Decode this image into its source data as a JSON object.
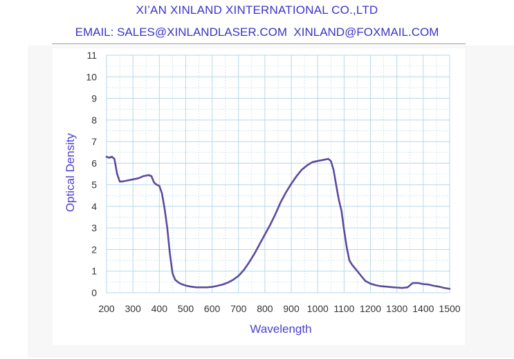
{
  "header": {
    "company": "XI’AN XINLAND XINTERNATIONAL CO.,LTD",
    "email": "EMAIL: SALES@XINLANDLASER.COM  XINLAND@FOXMAIL.COM"
  },
  "colors": {
    "header_text": "#3a33c8",
    "axis_title": "#4a3fd0",
    "line": "#5b4a9c",
    "grid": "#b5d7ea"
  },
  "chart_data": {
    "type": "line",
    "xlabel": "Wavelength",
    "ylabel": "Optical Density",
    "xlim": [
      200,
      1500
    ],
    "ylim": [
      0,
      11
    ],
    "x_ticks": [
      200,
      300,
      400,
      500,
      600,
      700,
      800,
      900,
      1000,
      1100,
      1200,
      1300,
      1400,
      1500
    ],
    "y_ticks": [
      0,
      1,
      2,
      3,
      4,
      5,
      6,
      7,
      8,
      9,
      10,
      11
    ],
    "grid": true,
    "legend": "none",
    "series": [
      {
        "x": [
          200,
          210,
          220,
          230,
          240,
          250,
          260,
          280,
          300,
          320,
          340,
          360,
          370,
          380,
          390,
          400,
          410,
          420,
          430,
          440,
          450,
          460,
          470,
          480,
          500,
          520,
          540,
          560,
          580,
          600,
          620,
          640,
          660,
          680,
          700,
          720,
          740,
          760,
          780,
          800,
          820,
          840,
          860,
          880,
          900,
          920,
          940,
          960,
          980,
          1000,
          1020,
          1040,
          1050,
          1060,
          1070,
          1080,
          1090,
          1100,
          1110,
          1120,
          1130,
          1140,
          1150,
          1160,
          1180,
          1200,
          1220,
          1240,
          1260,
          1280,
          1300,
          1320,
          1340,
          1350,
          1360,
          1380,
          1400,
          1420,
          1440,
          1460,
          1480,
          1500
        ],
        "y": [
          6.3,
          6.25,
          6.3,
          6.2,
          5.5,
          5.15,
          5.15,
          5.2,
          5.25,
          5.3,
          5.4,
          5.45,
          5.4,
          5.1,
          5.0,
          4.95,
          4.6,
          3.9,
          3.0,
          1.8,
          0.9,
          0.6,
          0.5,
          0.42,
          0.33,
          0.28,
          0.25,
          0.25,
          0.25,
          0.27,
          0.32,
          0.38,
          0.47,
          0.6,
          0.78,
          1.05,
          1.4,
          1.8,
          2.25,
          2.7,
          3.15,
          3.65,
          4.2,
          4.65,
          5.05,
          5.4,
          5.7,
          5.9,
          6.05,
          6.1,
          6.15,
          6.2,
          6.1,
          5.7,
          5.0,
          4.3,
          3.8,
          2.9,
          2.1,
          1.5,
          1.3,
          1.15,
          1.0,
          0.85,
          0.55,
          0.42,
          0.35,
          0.3,
          0.28,
          0.26,
          0.24,
          0.22,
          0.25,
          0.35,
          0.45,
          0.45,
          0.4,
          0.38,
          0.32,
          0.28,
          0.22,
          0.18
        ]
      }
    ]
  }
}
